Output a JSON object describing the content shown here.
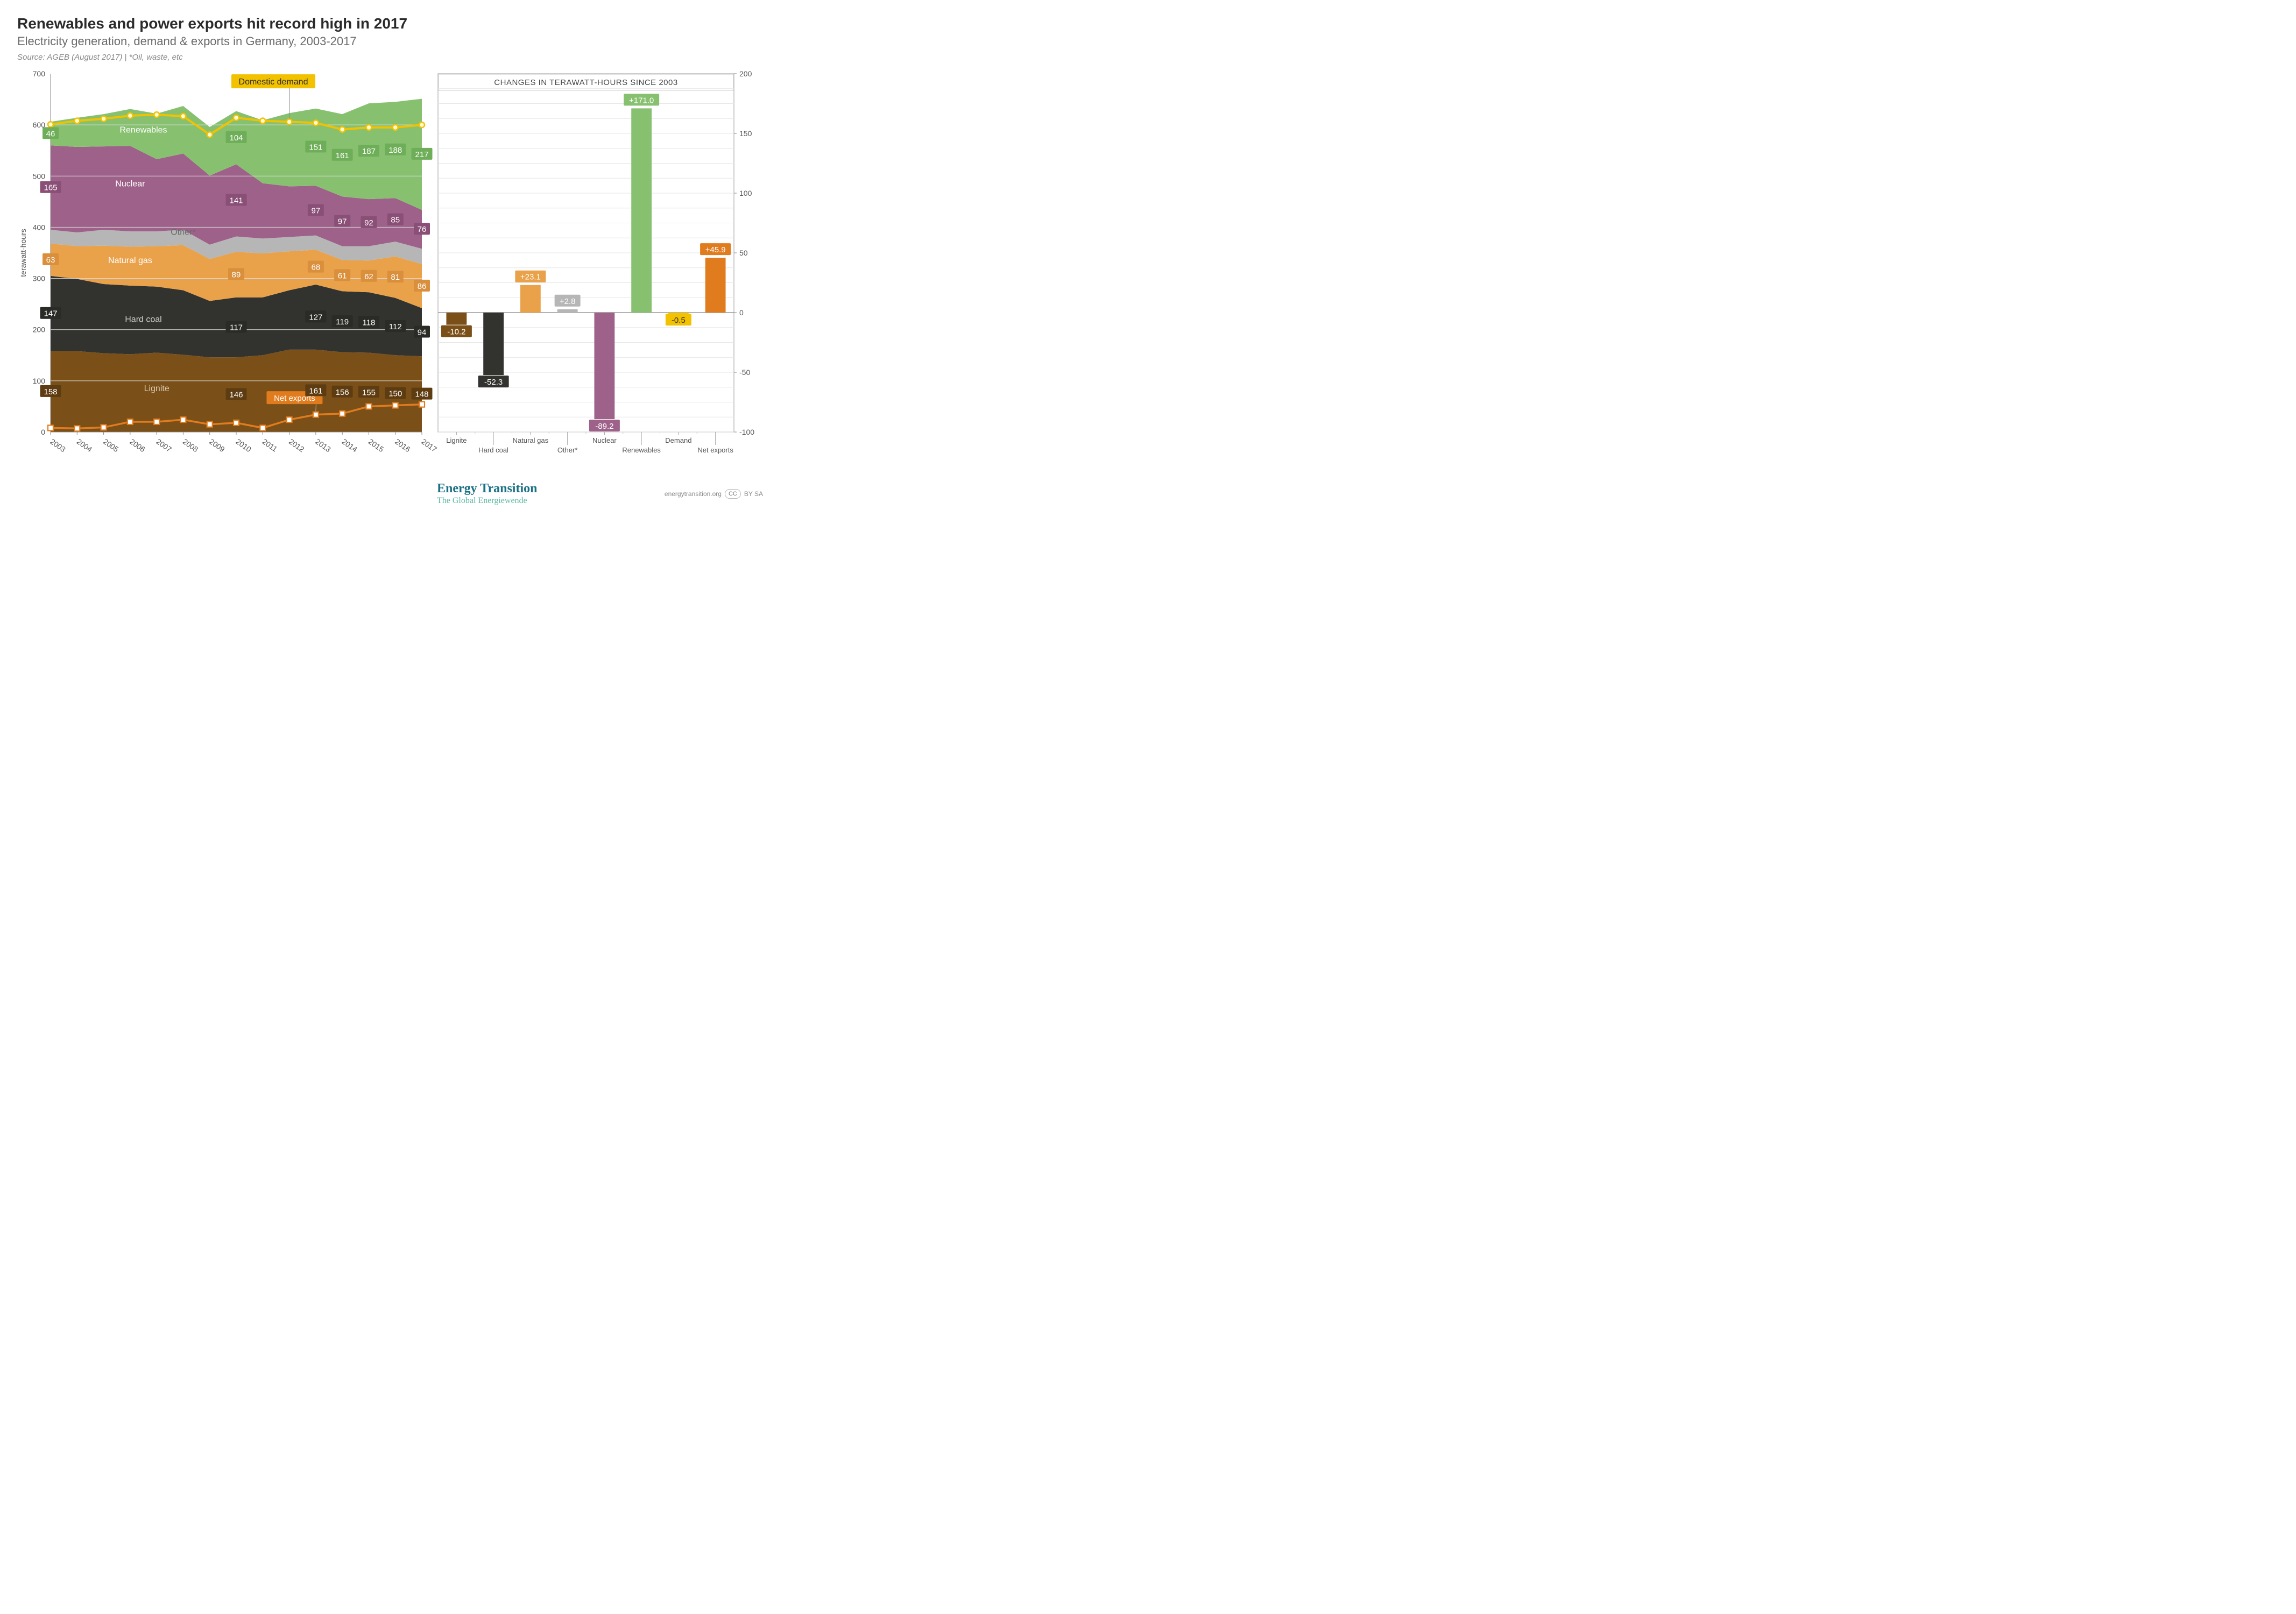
{
  "title": "Renewables and power exports hit record high in 2017",
  "subtitle": "Electricity generation, demand & exports in Germany, 2003-2017",
  "source": "Source: AGEB (August 2017) | *Oil, waste, etc",
  "area_chart": {
    "type": "stacked_area+lines",
    "years": [
      "2003",
      "2004",
      "2005",
      "2006",
      "2007",
      "2008",
      "2009",
      "2010",
      "2011",
      "2012",
      "2013",
      "2014",
      "2015",
      "2016",
      "2017"
    ],
    "yaxis": {
      "label": "terawatt-hours",
      "min": 0,
      "max": 700,
      "step": 100
    },
    "background": "#ffffff",
    "series": {
      "Lignite": {
        "color": "#7a5018",
        "label_color": "#c6b097",
        "label": "Lignite",
        "values": [
          158,
          158,
          154,
          152,
          155,
          151,
          146,
          146,
          150,
          161,
          161,
          156,
          155,
          150,
          148
        ]
      },
      "Hard coal": {
        "color": "#32322e",
        "label_color": "#bfbfbc",
        "label": "Hard coal",
        "values": [
          147,
          141,
          135,
          134,
          129,
          126,
          110,
          117,
          113,
          116,
          127,
          119,
          118,
          112,
          94
        ]
      },
      "Natural gas": {
        "color": "#e9a14a",
        "label_color": "#fff",
        "label": "Natural gas",
        "values": [
          63,
          64,
          75,
          76,
          79,
          88,
          82,
          89,
          86,
          76,
          68,
          61,
          62,
          81,
          86
        ]
      },
      "Other": {
        "color": "#b6b6b6",
        "label_color": "#6a6a6a",
        "label": "Other*",
        "values": [
          27,
          27,
          31,
          30,
          29,
          30,
          28,
          30,
          29,
          28,
          28,
          27,
          28,
          29,
          30
        ]
      },
      "Nuclear": {
        "color": "#9e6189",
        "label_color": "#fff",
        "label": "Nuclear",
        "values": [
          165,
          167,
          163,
          167,
          141,
          149,
          135,
          141,
          108,
          99,
          97,
          97,
          92,
          85,
          76
        ]
      },
      "Renewables": {
        "color": "#87c170",
        "label_color": "#fff",
        "label": "Renewables",
        "values": [
          46,
          57,
          63,
          72,
          89,
          93,
          95,
          104,
          123,
          143,
          151,
          161,
          187,
          188,
          217
        ]
      }
    },
    "stack_order": [
      "Lignite",
      "Hard coal",
      "Natural gas",
      "Other",
      "Nuclear",
      "Renewables"
    ],
    "line_demand": {
      "label": "Domestic demand",
      "color": "#f2c200",
      "marker_fill": "#fff9d8",
      "values": [
        601,
        608,
        612,
        618,
        620,
        617,
        581,
        614,
        608,
        606,
        604,
        591,
        595,
        595,
        600
      ]
    },
    "line_exports": {
      "label": "Net exports",
      "color": "#e07b1e",
      "marker_fill": "#ffffff",
      "values": [
        8,
        7,
        9,
        20,
        20,
        24,
        15,
        18,
        8,
        24,
        34,
        36,
        50,
        52,
        54
      ]
    },
    "label_boxes": {
      "Lignite": {
        "2003": 158,
        "2010": 146,
        "2013": 161,
        "2014": 156,
        "2015": 155,
        "2016": 150,
        "2017": 148
      },
      "Hard coal": {
        "2003": 147,
        "2010": 117,
        "2013": 127,
        "2014": 119,
        "2015": 118,
        "2016": 112,
        "2017": 94
      },
      "Natural gas": {
        "2003": 63,
        "2010": 89,
        "2013": 68,
        "2014": 61,
        "2015": 62,
        "2016": 81,
        "2017": 86
      },
      "Nuclear": {
        "2003": 165,
        "2010": 141,
        "2013": 97,
        "2014": 97,
        "2015": 92,
        "2016": 85,
        "2017": 76
      },
      "Renewables": {
        "2003": 46,
        "2010": 104,
        "2013": 151,
        "2014": 161,
        "2015": 187,
        "2016": 188,
        "2017": 217
      }
    },
    "stripe_labels": {
      "Lignite": [
        4,
        80
      ],
      "Hard coal": [
        3.5,
        215
      ],
      "Natural gas": [
        3,
        330
      ],
      "Other*": [
        5,
        385
      ],
      "Nuclear": [
        3,
        480
      ],
      "Renewables": [
        3.5,
        585
      ]
    }
  },
  "bar_chart": {
    "type": "bar",
    "title": "CHANGES IN TERAWATT-HOURS SINCE 2003",
    "yaxis": {
      "min": -100,
      "max": 200,
      "step": 50
    },
    "grid_minor_step": 12.5,
    "grid_color": "#e6e6e6",
    "categories": [
      "Lignite",
      "Hard coal",
      "Natural gas",
      "Other*",
      "Nuclear",
      "Renewables",
      "Demand",
      "Net exports"
    ],
    "values": [
      -10.2,
      -52.3,
      23.1,
      2.8,
      -89.2,
      171.0,
      -0.5,
      45.9
    ],
    "display": [
      "-10.2",
      "-52.3",
      "+23.1",
      "+2.8",
      "-89.2",
      "+171.0",
      "-0.5",
      "+45.9"
    ],
    "colors": [
      "#7a5018",
      "#32322e",
      "#e9a14a",
      "#b6b6b6",
      "#9e6189",
      "#87c170",
      "#f2c200",
      "#e07b1e"
    ],
    "bar_width": 0.55
  },
  "footer": {
    "brand1": "Energy Transition",
    "brand2": "The Global Energiewende",
    "site": "energytransition.org",
    "license": "BY SA",
    "cc": "CC"
  }
}
